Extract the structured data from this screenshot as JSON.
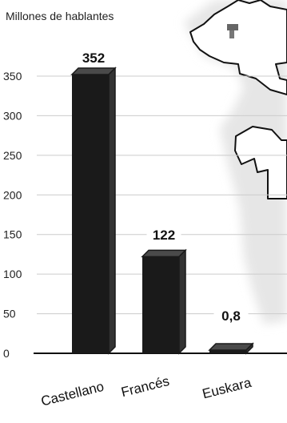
{
  "chart_data": {
    "type": "bar",
    "ylabel": "Millones de hablantes",
    "categories": [
      "Castellano",
      "Francés",
      "Euskara"
    ],
    "values": [
      352,
      122,
      0.8
    ],
    "value_labels": [
      "352",
      "122",
      "0,8"
    ],
    "ylim": [
      0,
      350
    ],
    "yticks": [
      0,
      50,
      100,
      150,
      200,
      250,
      300,
      350
    ],
    "grid": true,
    "colors": {
      "bar": "#1a1a1a",
      "grid": "#cccccc",
      "axis": "#111111",
      "map_fill": "#ffffff",
      "map_shadow": "#9a9a9a",
      "map_halo": "#e4e4e4"
    }
  }
}
